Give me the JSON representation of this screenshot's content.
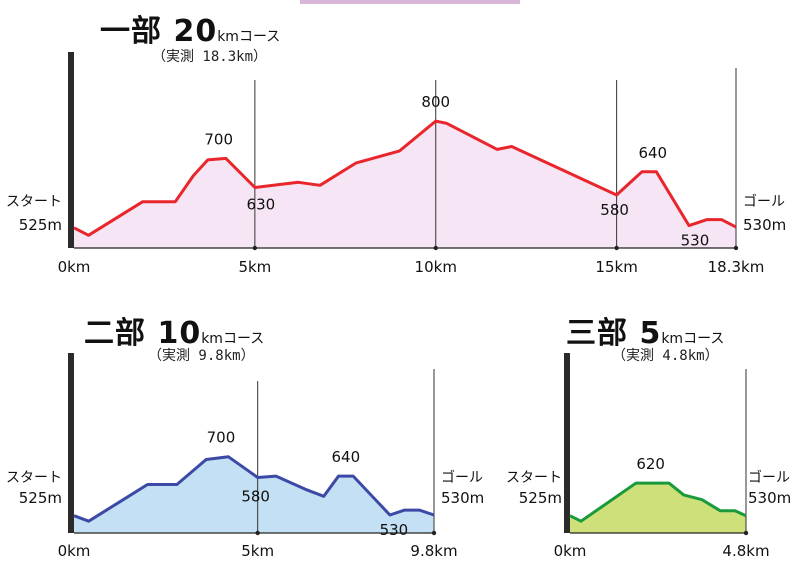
{
  "chart_data": [
    {
      "type": "area",
      "title_main": "一部 20",
      "title_unit": "kmコース",
      "subtitle": "（実測 18.3km）",
      "start_label": "スタート",
      "start_elev": "525m",
      "goal_label": "ゴール",
      "goal_elev": "530m",
      "xlim": [
        0,
        18.3
      ],
      "ylim": [
        500,
        800
      ],
      "xticks": [
        0,
        5,
        10,
        15,
        18.3
      ],
      "xtick_labels": [
        "0km",
        "5km",
        "10km",
        "15km",
        "18.3km"
      ],
      "fill": "#f6e6f5",
      "line": "#e8262c",
      "points": [
        [
          0,
          527
        ],
        [
          0.4,
          517
        ],
        [
          1.9,
          562
        ],
        [
          2.8,
          562
        ],
        [
          3.3,
          597
        ],
        [
          3.7,
          618
        ],
        [
          4.2,
          620
        ],
        [
          5,
          581
        ],
        [
          6.2,
          588
        ],
        [
          6.8,
          584
        ],
        [
          7.8,
          614
        ],
        [
          9,
          630
        ],
        [
          10,
          670
        ],
        [
          10.3,
          667
        ],
        [
          11.7,
          632
        ],
        [
          12.1,
          636
        ],
        [
          15,
          571
        ],
        [
          15.7,
          602
        ],
        [
          16.1,
          602
        ],
        [
          17,
          530
        ],
        [
          17.5,
          538
        ],
        [
          17.9,
          538
        ],
        [
          18.3,
          528
        ]
      ],
      "annotations": [
        {
          "x": 4.0,
          "y": 700,
          "label": "700"
        },
        {
          "x": 10.0,
          "y": 800,
          "label": "800"
        },
        {
          "x": 5.0,
          "y": 630,
          "label": "630"
        },
        {
          "x": 15.0,
          "y": 580,
          "label": "580"
        },
        {
          "x": 16.0,
          "y": 640,
          "label": "640"
        },
        {
          "x": 17.0,
          "y": 530,
          "label": "530"
        }
      ]
    },
    {
      "type": "area",
      "title_main": "二部 10",
      "title_unit": "kmコース",
      "subtitle": "（実測 9.8km）",
      "start_label": "スタート",
      "start_elev": "525m",
      "goal_label": "ゴール",
      "goal_elev": "530m",
      "xlim": [
        0,
        9.8
      ],
      "ylim": [
        500,
        800
      ],
      "xticks": [
        0,
        5,
        9.8
      ],
      "xtick_labels": [
        "0km",
        "5km",
        "9.8km"
      ],
      "fill": "#c4e0f5",
      "line": "#3c4aa6",
      "points": [
        [
          0,
          525
        ],
        [
          0.4,
          517
        ],
        [
          2,
          570
        ],
        [
          2.8,
          570
        ],
        [
          3.6,
          606
        ],
        [
          4.2,
          610
        ],
        [
          5,
          580
        ],
        [
          5.5,
          582
        ],
        [
          6.3,
          563
        ],
        [
          6.8,
          553
        ],
        [
          7.2,
          582
        ],
        [
          7.6,
          582
        ],
        [
          8.6,
          526
        ],
        [
          9,
          533
        ],
        [
          9.4,
          533
        ],
        [
          9.8,
          526
        ]
      ],
      "annotations": [
        {
          "x": 4.0,
          "y": 700,
          "label": "700"
        },
        {
          "x": 5.0,
          "y": 580,
          "label": "580"
        },
        {
          "x": 7.4,
          "y": 640,
          "label": "640"
        },
        {
          "x": 8.6,
          "y": 530,
          "label": "530"
        }
      ]
    },
    {
      "type": "area",
      "title_main": "三部 5",
      "title_unit": "kmコース",
      "subtitle": "（実測 4.8km）",
      "start_label": "スタート",
      "start_elev": "525m",
      "goal_label": "ゴール",
      "goal_elev": "530m",
      "xlim": [
        0,
        4.8
      ],
      "ylim": [
        500,
        800
      ],
      "xticks": [
        0,
        4.8
      ],
      "xtick_labels": [
        "0km",
        "4.8km"
      ],
      "fill": "#cde07a",
      "line": "#1a9a3a",
      "points": [
        [
          0,
          525
        ],
        [
          0.3,
          517
        ],
        [
          1.8,
          572
        ],
        [
          2.7,
          572
        ],
        [
          3.1,
          555
        ],
        [
          3.6,
          548
        ],
        [
          4.1,
          532
        ],
        [
          4.5,
          532
        ],
        [
          4.8,
          525
        ]
      ],
      "annotations": [
        {
          "x": 2.2,
          "y": 620,
          "label": "620"
        }
      ]
    }
  ]
}
